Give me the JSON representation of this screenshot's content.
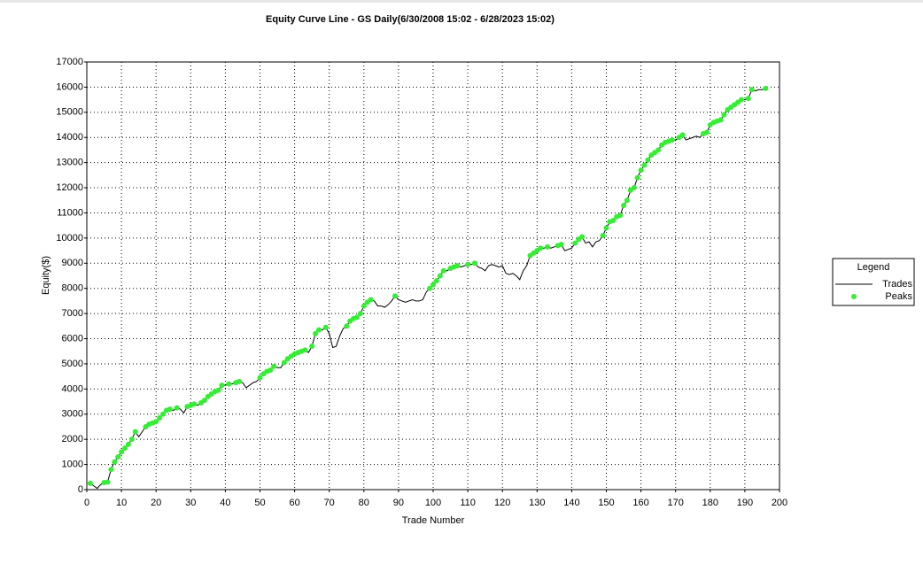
{
  "chart_data": {
    "type": "line",
    "title": "Equity Curve Line - GS Daily(6/30/2008 15:02 - 6/28/2023 15:02)",
    "x_label": "Trade Number",
    "y_label": "Equity($)",
    "legend_title": "Legend",
    "legend": "right",
    "grid": true,
    "xlim": [
      0,
      200
    ],
    "xticks": [
      0,
      10,
      20,
      30,
      40,
      50,
      60,
      70,
      80,
      90,
      100,
      110,
      120,
      130,
      140,
      150,
      160,
      170,
      180,
      190,
      200
    ],
    "ylim": [
      0,
      17000
    ],
    "yticks": [
      0,
      1000,
      2000,
      3000,
      4000,
      5000,
      6000,
      7000,
      8000,
      9000,
      10000,
      11000,
      12000,
      13000,
      14000,
      15000,
      16000,
      17000
    ],
    "series": [
      {
        "name": "Trades",
        "color": "#000000",
        "kind": "line",
        "x": [
          1,
          2,
          3,
          4,
          5,
          6,
          7,
          8,
          9,
          10,
          11,
          12,
          13,
          14,
          15,
          16,
          17,
          18,
          19,
          20,
          21,
          22,
          23,
          24,
          25,
          26,
          27,
          28,
          29,
          30,
          31,
          32,
          33,
          34,
          35,
          36,
          37,
          38,
          39,
          40,
          41,
          42,
          43,
          44,
          45,
          46,
          47,
          48,
          49,
          50,
          51,
          52,
          53,
          54,
          55,
          56,
          57,
          58,
          59,
          60,
          61,
          62,
          63,
          64,
          65,
          66,
          67,
          68,
          69,
          70,
          71,
          72,
          73,
          74,
          75,
          76,
          77,
          78,
          79,
          80,
          81,
          82,
          83,
          84,
          85,
          86,
          87,
          88,
          89,
          90,
          91,
          92,
          93,
          94,
          95,
          96,
          97,
          98,
          99,
          100,
          101,
          102,
          103,
          104,
          105,
          106,
          107,
          108,
          109,
          110,
          111,
          112,
          113,
          114,
          115,
          116,
          117,
          118,
          119,
          120,
          121,
          122,
          123,
          124,
          125,
          126,
          127,
          128,
          129,
          130,
          131,
          132,
          133,
          134,
          135,
          136,
          137,
          138,
          139,
          140,
          141,
          142,
          143,
          144,
          145,
          146,
          147,
          148,
          149,
          150,
          151,
          152,
          153,
          154,
          155,
          156,
          157,
          158,
          159,
          160,
          161,
          162,
          163,
          164,
          165,
          166,
          167,
          168,
          169,
          170,
          171,
          172,
          173,
          174,
          175,
          176,
          177,
          178,
          179,
          180,
          181,
          182,
          183,
          184,
          185,
          186,
          187,
          188,
          189,
          190,
          191,
          192,
          193,
          194,
          195,
          196
        ],
        "values": [
          250,
          150,
          50,
          200,
          280,
          300,
          800,
          1100,
          1300,
          1500,
          1650,
          1800,
          2000,
          2300,
          2100,
          2300,
          2500,
          2600,
          2650,
          2700,
          2850,
          3000,
          3150,
          3200,
          3150,
          3250,
          3200,
          3050,
          3300,
          3350,
          3400,
          3350,
          3450,
          3550,
          3700,
          3800,
          3900,
          3950,
          4150,
          4150,
          4200,
          4200,
          4250,
          4300,
          4250,
          4050,
          4150,
          4250,
          4300,
          4450,
          4600,
          4700,
          4750,
          4900,
          4850,
          4850,
          5050,
          5200,
          5300,
          5400,
          5450,
          5500,
          5550,
          5450,
          5700,
          6200,
          6350,
          6350,
          6450,
          6200,
          5650,
          5700,
          6100,
          6400,
          6500,
          6700,
          6800,
          6850,
          7000,
          7300,
          7450,
          7550,
          7500,
          7300,
          7300,
          7250,
          7350,
          7500,
          7700,
          7550,
          7500,
          7450,
          7500,
          7550,
          7500,
          7500,
          7550,
          7850,
          8000,
          8150,
          8300,
          8500,
          8700,
          8700,
          8800,
          8850,
          8900,
          8850,
          8900,
          8950,
          8950,
          9000,
          8850,
          8800,
          8700,
          8900,
          8950,
          8900,
          8850,
          8900,
          8600,
          8550,
          8600,
          8500,
          8350,
          8700,
          8900,
          9300,
          9400,
          9500,
          9600,
          9600,
          9650,
          9600,
          9650,
          9700,
          9750,
          9500,
          9550,
          9600,
          9800,
          9950,
          10050,
          9800,
          9850,
          9650,
          9850,
          9900,
          10100,
          10400,
          10650,
          10700,
          10850,
          10900,
          11300,
          11500,
          11900,
          12000,
          12400,
          12700,
          12900,
          13100,
          13300,
          13400,
          13500,
          13700,
          13800,
          13850,
          13900,
          13900,
          14000,
          14100,
          13900,
          13950,
          14000,
          14050,
          14000,
          14150,
          14200,
          14500,
          14600,
          14650,
          14700,
          14900,
          15100,
          15200,
          15300,
          15400,
          15500,
          15500,
          15550,
          15900,
          15850,
          15900,
          15900,
          15950
        ]
      },
      {
        "name": "Peaks",
        "color": "#33ee33",
        "kind": "points",
        "x": [
          1,
          5,
          6,
          7,
          8,
          9,
          10,
          11,
          12,
          13,
          14,
          17,
          18,
          19,
          20,
          21,
          22,
          23,
          24,
          26,
          29,
          30,
          31,
          33,
          34,
          35,
          36,
          37,
          38,
          39,
          41,
          43,
          44,
          50,
          51,
          52,
          53,
          54,
          57,
          58,
          59,
          60,
          61,
          62,
          63,
          65,
          66,
          67,
          69,
          75,
          76,
          77,
          78,
          79,
          80,
          81,
          82,
          89,
          99,
          100,
          101,
          102,
          103,
          105,
          106,
          107,
          110,
          112,
          128,
          129,
          130,
          131,
          133,
          136,
          137,
          141,
          142,
          143,
          149,
          150,
          151,
          152,
          153,
          154,
          155,
          156,
          157,
          158,
          159,
          160,
          161,
          162,
          163,
          164,
          165,
          166,
          167,
          168,
          169,
          171,
          172,
          178,
          179,
          180,
          181,
          182,
          183,
          184,
          185,
          186,
          187,
          188,
          189,
          191,
          192,
          196
        ],
        "values": [
          250,
          280,
          300,
          800,
          1100,
          1300,
          1500,
          1650,
          1800,
          2000,
          2300,
          2500,
          2600,
          2650,
          2700,
          2850,
          3000,
          3150,
          3200,
          3250,
          3300,
          3350,
          3400,
          3450,
          3550,
          3700,
          3800,
          3900,
          3950,
          4150,
          4200,
          4250,
          4300,
          4450,
          4600,
          4700,
          4750,
          4900,
          5050,
          5200,
          5300,
          5400,
          5450,
          5500,
          5550,
          5700,
          6200,
          6350,
          6450,
          6500,
          6700,
          6800,
          6850,
          7000,
          7300,
          7450,
          7550,
          7700,
          8000,
          8150,
          8300,
          8500,
          8700,
          8800,
          8850,
          8900,
          8950,
          9000,
          9300,
          9400,
          9500,
          9600,
          9650,
          9700,
          9750,
          9800,
          9950,
          10050,
          10100,
          10400,
          10650,
          10700,
          10850,
          10900,
          11300,
          11500,
          11900,
          12000,
          12400,
          12700,
          12900,
          13100,
          13300,
          13400,
          13500,
          13700,
          13800,
          13850,
          13900,
          14000,
          14100,
          14150,
          14200,
          14500,
          14600,
          14650,
          14700,
          14900,
          15100,
          15200,
          15300,
          15400,
          15500,
          15550,
          15900,
          15950
        ]
      }
    ]
  }
}
